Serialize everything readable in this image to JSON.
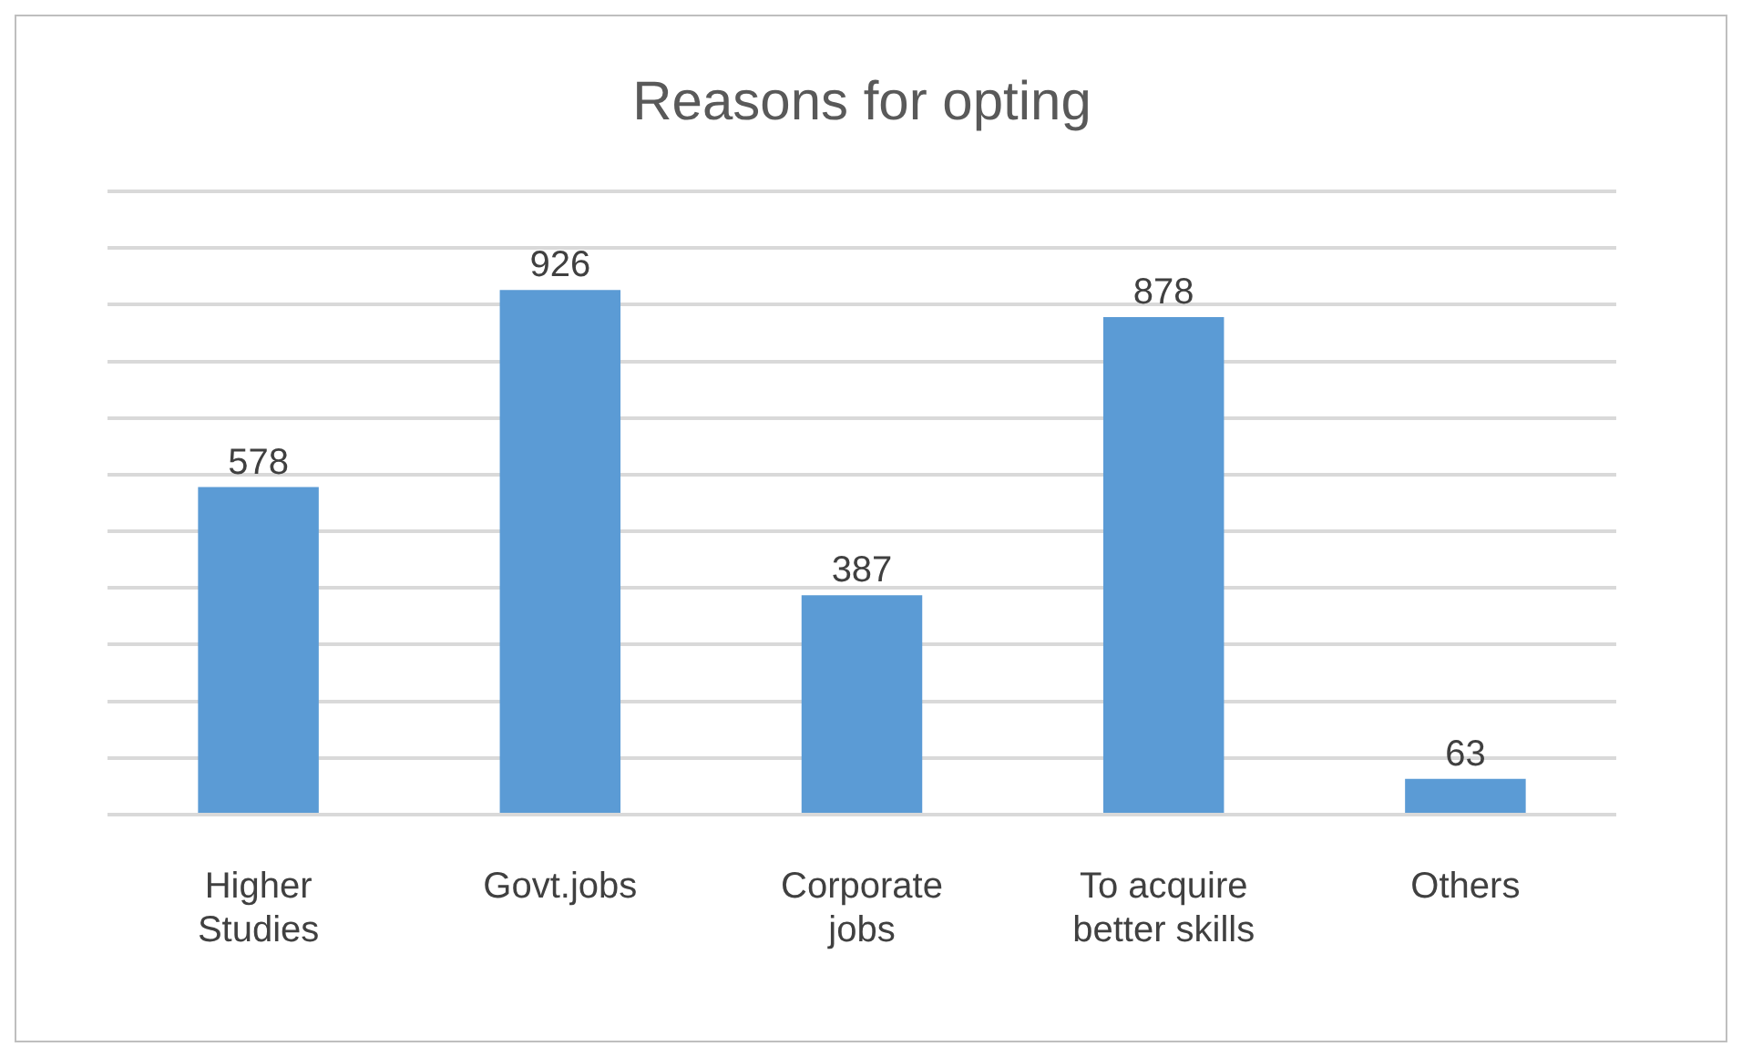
{
  "chart_data": {
    "type": "bar",
    "title": "Reasons for opting",
    "categories": [
      "Higher Studies",
      "Govt.jobs",
      "Corporate jobs",
      "To acquire better skills",
      "Others"
    ],
    "values": [
      578,
      926,
      387,
      878,
      63
    ],
    "color": "#5b9bd5",
    "ylim": [
      0,
      1100
    ],
    "yticks": [
      0,
      100,
      200,
      300,
      400,
      500,
      600,
      700,
      800,
      900,
      1000,
      1100
    ],
    "tick_labels": "x",
    "grid": "y",
    "data_labels": true,
    "legend": false
  }
}
